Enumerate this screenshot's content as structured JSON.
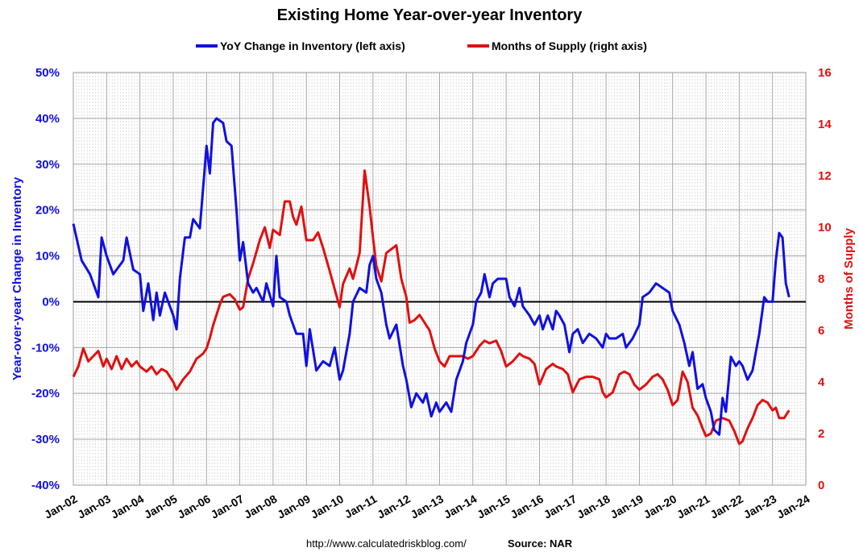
{
  "chart_data": {
    "type": "line",
    "title": "Existing Home Year-over-year Inventory",
    "ylabel_left": "Year-over-year Change in Inventory",
    "ylabel_right": "Months of Supply",
    "ylim_left": [
      -40,
      50
    ],
    "ylim_right": [
      0,
      16
    ],
    "yticks_left": [
      "50%",
      "40%",
      "30%",
      "20%",
      "10%",
      "0%",
      "-10%",
      "-20%",
      "-30%",
      "-40%"
    ],
    "yticks_right": [
      "16",
      "14",
      "12",
      "10",
      "8",
      "6",
      "4",
      "2",
      "0"
    ],
    "xticks": [
      "Jan-02",
      "Jan-03",
      "Jan-04",
      "Jan-05",
      "Jan-06",
      "Jan-07",
      "Jan-08",
      "Jan-09",
      "Jan-10",
      "Jan-11",
      "Jan-12",
      "Jan-13",
      "Jan-14",
      "Jan-15",
      "Jan-16",
      "Jan-17",
      "Jan-18",
      "Jan-19",
      "Jan-20",
      "Jan-21",
      "Jan-22",
      "Jan-23",
      "Jan-24"
    ],
    "xlim": [
      2002.0,
      2024.0
    ],
    "grid": true,
    "legend_position": "top-center",
    "series": [
      {
        "name": "YoY Change in Inventory (left axis)",
        "axis": "left",
        "color": "#1010e0",
        "points": [
          [
            2002.0,
            17
          ],
          [
            2002.25,
            9
          ],
          [
            2002.5,
            6
          ],
          [
            2002.75,
            1
          ],
          [
            2002.85,
            14
          ],
          [
            2003.0,
            10
          ],
          [
            2003.2,
            6
          ],
          [
            2003.5,
            9
          ],
          [
            2003.6,
            14
          ],
          [
            2003.8,
            7
          ],
          [
            2004.0,
            6
          ],
          [
            2004.1,
            -2
          ],
          [
            2004.25,
            4
          ],
          [
            2004.4,
            -4
          ],
          [
            2004.5,
            2
          ],
          [
            2004.6,
            -3
          ],
          [
            2004.75,
            2
          ],
          [
            2005.0,
            -3
          ],
          [
            2005.1,
            -6
          ],
          [
            2005.2,
            5
          ],
          [
            2005.35,
            14
          ],
          [
            2005.5,
            14
          ],
          [
            2005.6,
            18
          ],
          [
            2005.8,
            16
          ],
          [
            2006.0,
            34
          ],
          [
            2006.1,
            28
          ],
          [
            2006.2,
            39
          ],
          [
            2006.3,
            40
          ],
          [
            2006.5,
            39
          ],
          [
            2006.6,
            35
          ],
          [
            2006.75,
            34
          ],
          [
            2006.9,
            20
          ],
          [
            2007.0,
            9
          ],
          [
            2007.1,
            13
          ],
          [
            2007.25,
            4
          ],
          [
            2007.4,
            2
          ],
          [
            2007.5,
            3
          ],
          [
            2007.7,
            0
          ],
          [
            2007.8,
            4
          ],
          [
            2008.0,
            -1
          ],
          [
            2008.1,
            10
          ],
          [
            2008.2,
            1
          ],
          [
            2008.4,
            0
          ],
          [
            2008.5,
            -3
          ],
          [
            2008.7,
            -7
          ],
          [
            2008.9,
            -7
          ],
          [
            2009.0,
            -14
          ],
          [
            2009.1,
            -6
          ],
          [
            2009.3,
            -15
          ],
          [
            2009.5,
            -13
          ],
          [
            2009.7,
            -14
          ],
          [
            2009.85,
            -10
          ],
          [
            2010.0,
            -17
          ],
          [
            2010.1,
            -15
          ],
          [
            2010.3,
            -7
          ],
          [
            2010.4,
            0
          ],
          [
            2010.6,
            3
          ],
          [
            2010.8,
            2
          ],
          [
            2010.9,
            8
          ],
          [
            2011.0,
            10
          ],
          [
            2011.1,
            5
          ],
          [
            2011.25,
            2
          ],
          [
            2011.4,
            -5
          ],
          [
            2011.5,
            -8
          ],
          [
            2011.7,
            -5
          ],
          [
            2011.9,
            -14
          ],
          [
            2012.0,
            -17
          ],
          [
            2012.15,
            -23
          ],
          [
            2012.3,
            -20
          ],
          [
            2012.5,
            -22
          ],
          [
            2012.6,
            -20
          ],
          [
            2012.75,
            -25
          ],
          [
            2012.9,
            -22
          ],
          [
            2013.0,
            -24
          ],
          [
            2013.2,
            -22
          ],
          [
            2013.35,
            -24
          ],
          [
            2013.5,
            -17
          ],
          [
            2013.7,
            -13
          ],
          [
            2013.8,
            -9
          ],
          [
            2014.0,
            -5
          ],
          [
            2014.1,
            0
          ],
          [
            2014.25,
            2
          ],
          [
            2014.35,
            6
          ],
          [
            2014.5,
            1
          ],
          [
            2014.6,
            4
          ],
          [
            2014.75,
            5
          ],
          [
            2015.0,
            5
          ],
          [
            2015.1,
            1
          ],
          [
            2015.25,
            -1
          ],
          [
            2015.4,
            3
          ],
          [
            2015.5,
            -1
          ],
          [
            2015.7,
            -3
          ],
          [
            2015.85,
            -5
          ],
          [
            2016.0,
            -3
          ],
          [
            2016.1,
            -6
          ],
          [
            2016.25,
            -3
          ],
          [
            2016.4,
            -6
          ],
          [
            2016.5,
            -2
          ],
          [
            2016.6,
            -3
          ],
          [
            2016.75,
            -5
          ],
          [
            2016.9,
            -11
          ],
          [
            2017.0,
            -7
          ],
          [
            2017.15,
            -6
          ],
          [
            2017.3,
            -9
          ],
          [
            2017.5,
            -7
          ],
          [
            2017.7,
            -8
          ],
          [
            2017.9,
            -10
          ],
          [
            2018.0,
            -7
          ],
          [
            2018.1,
            -8
          ],
          [
            2018.3,
            -8
          ],
          [
            2018.5,
            -7
          ],
          [
            2018.6,
            -10
          ],
          [
            2018.8,
            -8
          ],
          [
            2019.0,
            -5
          ],
          [
            2019.1,
            1
          ],
          [
            2019.3,
            2
          ],
          [
            2019.5,
            4
          ],
          [
            2019.7,
            3
          ],
          [
            2019.9,
            2
          ],
          [
            2020.0,
            -2
          ],
          [
            2020.2,
            -5
          ],
          [
            2020.35,
            -9
          ],
          [
            2020.5,
            -14
          ],
          [
            2020.6,
            -11
          ],
          [
            2020.75,
            -19
          ],
          [
            2020.9,
            -18
          ],
          [
            2021.0,
            -21
          ],
          [
            2021.15,
            -24
          ],
          [
            2021.25,
            -28
          ],
          [
            2021.4,
            -29
          ],
          [
            2021.5,
            -21
          ],
          [
            2021.6,
            -24
          ],
          [
            2021.75,
            -12
          ],
          [
            2021.9,
            -14
          ],
          [
            2022.0,
            -13
          ],
          [
            2022.1,
            -14
          ],
          [
            2022.25,
            -17
          ],
          [
            2022.4,
            -15
          ],
          [
            2022.5,
            -11
          ],
          [
            2022.6,
            -7
          ],
          [
            2022.75,
            1
          ],
          [
            2022.85,
            0
          ],
          [
            2023.0,
            0
          ],
          [
            2023.1,
            9
          ],
          [
            2023.2,
            15
          ],
          [
            2023.3,
            14
          ],
          [
            2023.4,
            4
          ],
          [
            2023.5,
            1
          ]
        ]
      },
      {
        "name": "Months of Supply (right axis)",
        "axis": "right",
        "color": "#e01010",
        "points": [
          [
            2002.0,
            4.2
          ],
          [
            2002.15,
            4.6
          ],
          [
            2002.3,
            5.3
          ],
          [
            2002.45,
            4.8
          ],
          [
            2002.6,
            5.0
          ],
          [
            2002.75,
            5.2
          ],
          [
            2002.9,
            4.6
          ],
          [
            2003.0,
            4.9
          ],
          [
            2003.15,
            4.5
          ],
          [
            2003.3,
            5.0
          ],
          [
            2003.45,
            4.5
          ],
          [
            2003.6,
            4.9
          ],
          [
            2003.75,
            4.6
          ],
          [
            2003.9,
            4.8
          ],
          [
            2004.0,
            4.6
          ],
          [
            2004.2,
            4.4
          ],
          [
            2004.35,
            4.6
          ],
          [
            2004.5,
            4.3
          ],
          [
            2004.65,
            4.5
          ],
          [
            2004.8,
            4.4
          ],
          [
            2005.0,
            4.0
          ],
          [
            2005.1,
            3.7
          ],
          [
            2005.3,
            4.1
          ],
          [
            2005.5,
            4.4
          ],
          [
            2005.7,
            4.9
          ],
          [
            2005.9,
            5.1
          ],
          [
            2006.0,
            5.3
          ],
          [
            2006.1,
            5.7
          ],
          [
            2006.2,
            6.2
          ],
          [
            2006.4,
            7.0
          ],
          [
            2006.5,
            7.3
          ],
          [
            2006.7,
            7.4
          ],
          [
            2006.85,
            7.2
          ],
          [
            2007.0,
            6.8
          ],
          [
            2007.1,
            6.9
          ],
          [
            2007.25,
            8.0
          ],
          [
            2007.4,
            8.6
          ],
          [
            2007.6,
            9.5
          ],
          [
            2007.75,
            10.0
          ],
          [
            2007.9,
            9.2
          ],
          [
            2008.0,
            9.9
          ],
          [
            2008.2,
            9.7
          ],
          [
            2008.35,
            11.0
          ],
          [
            2008.5,
            11.0
          ],
          [
            2008.6,
            10.4
          ],
          [
            2008.7,
            10.1
          ],
          [
            2008.85,
            10.8
          ],
          [
            2009.0,
            9.5
          ],
          [
            2009.2,
            9.5
          ],
          [
            2009.35,
            9.8
          ],
          [
            2009.5,
            9.2
          ],
          [
            2009.7,
            8.3
          ],
          [
            2009.85,
            7.6
          ],
          [
            2010.0,
            6.9
          ],
          [
            2010.1,
            7.8
          ],
          [
            2010.3,
            8.4
          ],
          [
            2010.4,
            8.0
          ],
          [
            2010.6,
            9.0
          ],
          [
            2010.75,
            12.2
          ],
          [
            2010.9,
            10.8
          ],
          [
            2011.0,
            9.6
          ],
          [
            2011.1,
            8.5
          ],
          [
            2011.25,
            7.9
          ],
          [
            2011.4,
            9.0
          ],
          [
            2011.5,
            9.1
          ],
          [
            2011.7,
            9.3
          ],
          [
            2011.85,
            8.0
          ],
          [
            2012.0,
            7.3
          ],
          [
            2012.1,
            6.3
          ],
          [
            2012.25,
            6.4
          ],
          [
            2012.4,
            6.6
          ],
          [
            2012.55,
            6.3
          ],
          [
            2012.7,
            6.0
          ],
          [
            2012.85,
            5.3
          ],
          [
            2013.0,
            4.8
          ],
          [
            2013.15,
            4.6
          ],
          [
            2013.3,
            5.0
          ],
          [
            2013.5,
            5.0
          ],
          [
            2013.7,
            5.0
          ],
          [
            2013.85,
            4.9
          ],
          [
            2014.0,
            5.0
          ],
          [
            2014.2,
            5.4
          ],
          [
            2014.35,
            5.6
          ],
          [
            2014.5,
            5.5
          ],
          [
            2014.7,
            5.6
          ],
          [
            2014.85,
            5.2
          ],
          [
            2015.0,
            4.6
          ],
          [
            2015.2,
            4.8
          ],
          [
            2015.4,
            5.1
          ],
          [
            2015.5,
            5.0
          ],
          [
            2015.7,
            4.9
          ],
          [
            2015.85,
            4.7
          ],
          [
            2016.0,
            3.9
          ],
          [
            2016.2,
            4.5
          ],
          [
            2016.4,
            4.7
          ],
          [
            2016.5,
            4.6
          ],
          [
            2016.7,
            4.5
          ],
          [
            2016.85,
            4.3
          ],
          [
            2017.0,
            3.6
          ],
          [
            2017.2,
            4.1
          ],
          [
            2017.4,
            4.2
          ],
          [
            2017.6,
            4.2
          ],
          [
            2017.8,
            4.1
          ],
          [
            2017.9,
            3.6
          ],
          [
            2018.0,
            3.4
          ],
          [
            2018.2,
            3.6
          ],
          [
            2018.4,
            4.3
          ],
          [
            2018.55,
            4.4
          ],
          [
            2018.7,
            4.3
          ],
          [
            2018.85,
            3.9
          ],
          [
            2019.0,
            3.7
          ],
          [
            2019.2,
            3.9
          ],
          [
            2019.4,
            4.2
          ],
          [
            2019.55,
            4.3
          ],
          [
            2019.7,
            4.1
          ],
          [
            2019.85,
            3.7
          ],
          [
            2020.0,
            3.1
          ],
          [
            2020.15,
            3.3
          ],
          [
            2020.3,
            4.4
          ],
          [
            2020.45,
            4.0
          ],
          [
            2020.6,
            3.0
          ],
          [
            2020.75,
            2.7
          ],
          [
            2020.9,
            2.2
          ],
          [
            2021.0,
            1.9
          ],
          [
            2021.15,
            2.0
          ],
          [
            2021.3,
            2.5
          ],
          [
            2021.5,
            2.6
          ],
          [
            2021.7,
            2.5
          ],
          [
            2021.85,
            2.1
          ],
          [
            2022.0,
            1.6
          ],
          [
            2022.1,
            1.7
          ],
          [
            2022.25,
            2.2
          ],
          [
            2022.4,
            2.6
          ],
          [
            2022.55,
            3.1
          ],
          [
            2022.7,
            3.3
          ],
          [
            2022.85,
            3.2
          ],
          [
            2023.0,
            2.9
          ],
          [
            2023.1,
            3.0
          ],
          [
            2023.2,
            2.6
          ],
          [
            2023.35,
            2.6
          ],
          [
            2023.5,
            2.9
          ]
        ]
      }
    ]
  },
  "footer": {
    "url": "http://www.calculatedriskblog.com/",
    "source": "Source: NAR"
  }
}
